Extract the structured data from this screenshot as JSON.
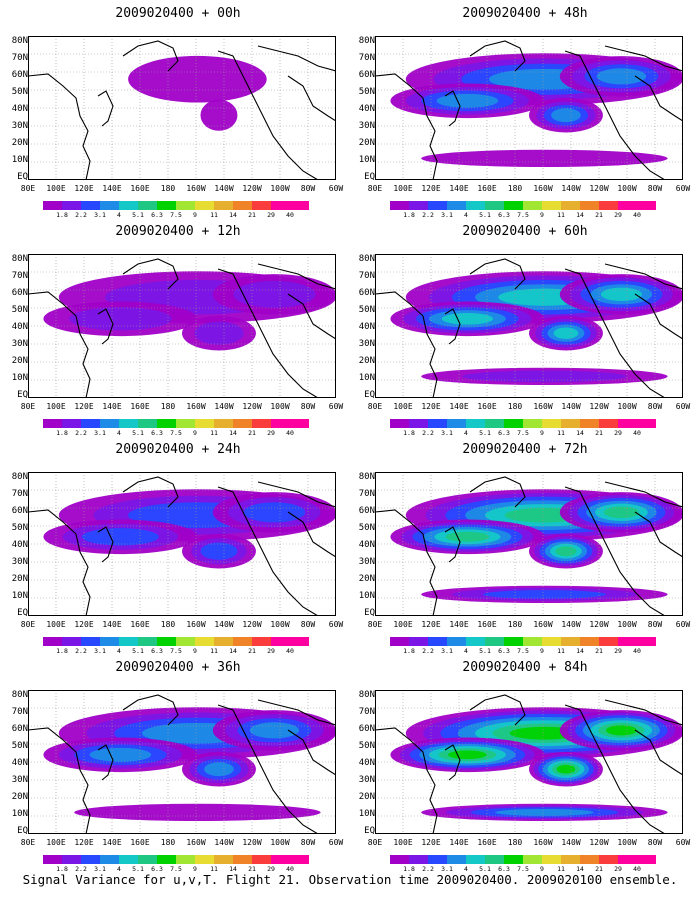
{
  "panels": [
    {
      "title": "2009020400 + 00h",
      "intensity": 0.15
    },
    {
      "title": "2009020400 + 48h",
      "intensity": 0.55
    },
    {
      "title": "2009020400 + 12h",
      "intensity": 0.3
    },
    {
      "title": "2009020400 + 60h",
      "intensity": 0.65
    },
    {
      "title": "2009020400 + 24h",
      "intensity": 0.4
    },
    {
      "title": "2009020400 + 72h",
      "intensity": 0.75
    },
    {
      "title": "2009020400 + 36h",
      "intensity": 0.48
    },
    {
      "title": "2009020400 + 84h",
      "intensity": 0.85
    }
  ],
  "lat_labels": [
    "80N",
    "70N",
    "60N",
    "50N",
    "40N",
    "30N",
    "20N",
    "10N",
    "EQ"
  ],
  "lon_labels": [
    "80E",
    "100E",
    "120E",
    "140E",
    "160E",
    "180",
    "160W",
    "140W",
    "120W",
    "100W",
    "80W",
    "60W"
  ],
  "colorbar": {
    "labels": [
      "1.8",
      "2.2",
      "3.1",
      "4",
      "5.1",
      "6.3",
      "7.5",
      "9",
      "11",
      "14",
      "21",
      "29",
      "40"
    ],
    "colors": [
      "#a000c8",
      "#7a16e6",
      "#2848ff",
      "#1e8ce6",
      "#14c8c8",
      "#1ec882",
      "#00d200",
      "#a0e632",
      "#e6dc32",
      "#e6af2d",
      "#f08228",
      "#fa3c3c",
      "#ff00a0",
      "#ff00a0"
    ]
  },
  "footer": "Signal Variance for u,v,T. Flight 21. Observation time 2009020400. 2009020100 ensemble."
}
